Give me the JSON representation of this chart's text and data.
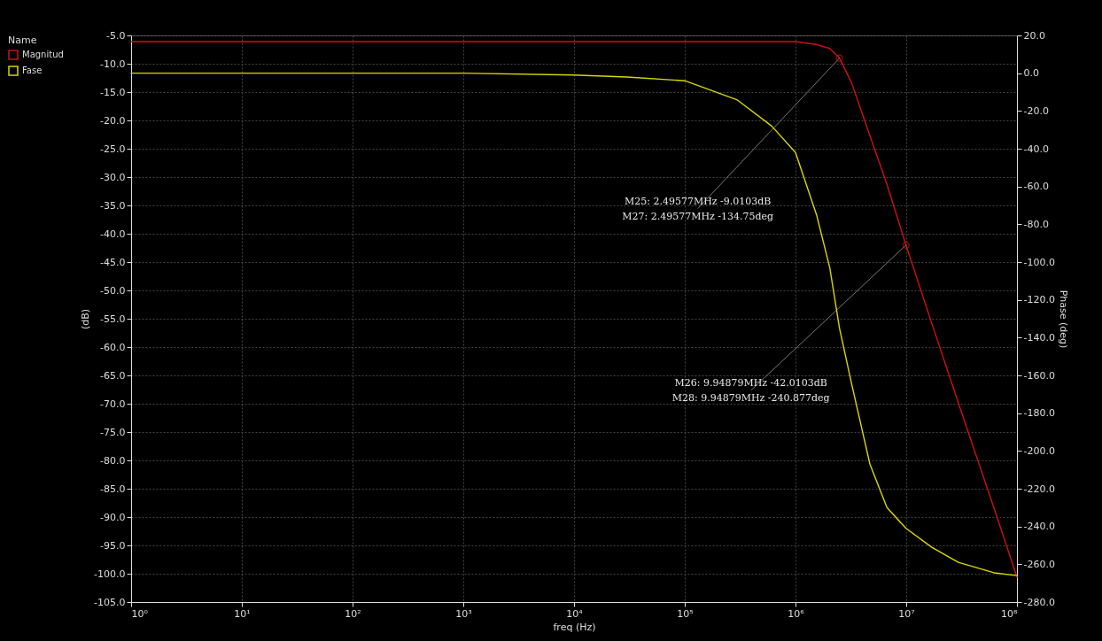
{
  "chart_data": {
    "type": "line",
    "xlabel": "freq (Hz)",
    "ylabel": "(dB)",
    "y2label": "Phase (deg)",
    "legend_title": "Name",
    "x": [
      1,
      10,
      100,
      1000,
      10000,
      30000,
      100000,
      295000,
      610000,
      1000000,
      1550000,
      2040000,
      2495770,
      3200000,
      4700000,
      6700000,
      9948790,
      17000000,
      29500000,
      62000000,
      100000000
    ],
    "series": [
      {
        "name": "Magnitud",
        "color": "#d01010",
        "values": [
          -6.1,
          -6.1,
          -6.1,
          -6.1,
          -6.1,
          -6.1,
          -6.1,
          -6.1,
          -6.1,
          -6.1,
          -6.6,
          -7.3,
          -9.0,
          -13.3,
          -22.7,
          -31.3,
          -42.0,
          -55.8,
          -69.8,
          -88.4,
          -100.6
        ]
      },
      {
        "name": "Fase",
        "color": "#d8d800",
        "axis": "y2",
        "values": [
          0,
          0,
          0,
          0,
          -1,
          -2,
          -4,
          -14,
          -28,
          -42,
          -75,
          -103,
          -135,
          -164,
          -207,
          -230,
          -241,
          -251,
          -259,
          -264.5,
          -266
        ]
      }
    ],
    "log": "x",
    "grid": true,
    "legend": "left",
    "marker": "none",
    "line_style": "solid",
    "xlim": [
      1,
      100000000
    ],
    "xticks": [
      {
        "value": 1,
        "label": "10⁰"
      },
      {
        "value": 10,
        "label": "10¹"
      },
      {
        "value": 100,
        "label": "10²"
      },
      {
        "value": 1000,
        "label": "10³"
      },
      {
        "value": 10000,
        "label": "10⁴"
      },
      {
        "value": 100000,
        "label": "10⁵"
      },
      {
        "value": 1000000,
        "label": "10⁶"
      },
      {
        "value": 10000000,
        "label": "10⁷"
      },
      {
        "value": 100000000,
        "label": "10⁸"
      }
    ],
    "ylim": [
      -105,
      -5
    ],
    "yticks": [
      {
        "value": -5,
        "label": "-5.0"
      },
      {
        "value": -10,
        "label": "-10.0"
      },
      {
        "value": -15,
        "label": "-15.0"
      },
      {
        "value": -20,
        "label": "-20.0"
      },
      {
        "value": -25,
        "label": "-25.0"
      },
      {
        "value": -30,
        "label": "-30.0"
      },
      {
        "value": -35,
        "label": "-35.0"
      },
      {
        "value": -40,
        "label": "-40.0"
      },
      {
        "value": -45,
        "label": "-45.0"
      },
      {
        "value": -50,
        "label": "-50.0"
      },
      {
        "value": -55,
        "label": "-55.0"
      },
      {
        "value": -60,
        "label": "-60.0"
      },
      {
        "value": -65,
        "label": "-65.0"
      },
      {
        "value": -70,
        "label": "-70.0"
      },
      {
        "value": -75,
        "label": "-75.0"
      },
      {
        "value": -80,
        "label": "-80.0"
      },
      {
        "value": -85,
        "label": "-85.0"
      },
      {
        "value": -90,
        "label": "-90.0"
      },
      {
        "value": -95,
        "label": "-95.0"
      },
      {
        "value": -100,
        "label": "-100.0"
      },
      {
        "value": -105,
        "label": "-105.0"
      }
    ],
    "y2lim": [
      -280,
      20
    ],
    "y2ticks": [
      {
        "value": 20,
        "label": "20.0"
      },
      {
        "value": 0,
        "label": "0.0"
      },
      {
        "value": -20,
        "label": "-20.0"
      },
      {
        "value": -40,
        "label": "-40.0"
      },
      {
        "value": -60,
        "label": "-60.0"
      },
      {
        "value": -80,
        "label": "-80.0"
      },
      {
        "value": -100,
        "label": "-100.0"
      },
      {
        "value": -120,
        "label": "-120.0"
      },
      {
        "value": -140,
        "label": "-140.0"
      },
      {
        "value": -160,
        "label": "-160.0"
      },
      {
        "value": -180,
        "label": "-180.0"
      },
      {
        "value": -200,
        "label": "-200.0"
      },
      {
        "value": -220,
        "label": "-220.0"
      },
      {
        "value": -240,
        "label": "-240.0"
      },
      {
        "value": -260,
        "label": "-260.0"
      },
      {
        "value": -280,
        "label": "-280.0"
      }
    ],
    "annotations": [
      {
        "text": "M25: 2.49577MHz -9.0103dB",
        "x": 2495770,
        "y": -9.0103
      },
      "M27: 2.49577MHz -134.75deg",
      {
        "text": "M26: 9.94879MHz -42.0103dB",
        "x": 9948790,
        "y": -42.0103
      },
      "M28: 9.94879MHz -240.877deg"
    ]
  }
}
